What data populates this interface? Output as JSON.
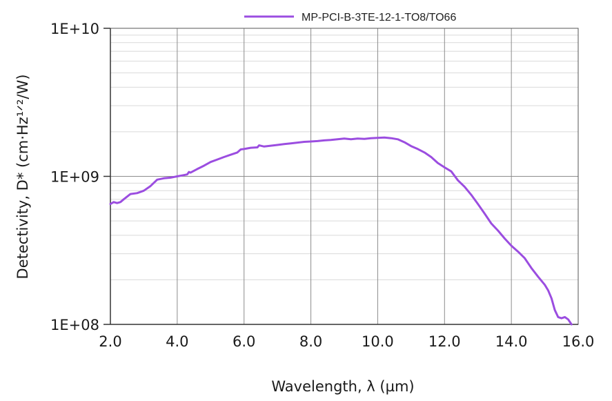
{
  "chart_data": {
    "type": "line",
    "xlabel": "Wavelength, λ (µm)",
    "ylabel": "Detectivity, D* (cm·Hz¹ᐟ²/W)",
    "xlim": [
      2.0,
      16.0
    ],
    "ylim": [
      100000000,
      10000000000
    ],
    "y_scale": "log",
    "grid": true,
    "legend_position": "top-right",
    "x_ticks": [
      2.0,
      4.0,
      6.0,
      8.0,
      10.0,
      12.0,
      14.0,
      16.0
    ],
    "x_tick_labels": [
      "2.0",
      "4.0",
      "6.0",
      "8.0",
      "10.0",
      "12.0",
      "14.0",
      "16.0"
    ],
    "y_ticks": [
      100000000,
      1000000000,
      10000000000
    ],
    "y_tick_labels": [
      "1E+08",
      "1E+09",
      "1E+10"
    ],
    "series": [
      {
        "name": "MP-PCI-B-3TE-12-1-TO8/TO66",
        "color": "#9b4de0",
        "x": [
          2.0,
          2.1,
          2.2,
          2.3,
          2.4,
          2.6,
          2.8,
          3.0,
          3.2,
          3.4,
          3.6,
          3.8,
          4.0,
          4.2,
          4.3,
          4.35,
          4.4,
          4.6,
          4.8,
          5.0,
          5.2,
          5.4,
          5.6,
          5.8,
          5.9,
          6.0,
          6.2,
          6.4,
          6.45,
          6.6,
          6.8,
          7.0,
          7.2,
          7.4,
          7.6,
          7.8,
          8.0,
          8.2,
          8.4,
          8.6,
          8.8,
          9.0,
          9.2,
          9.4,
          9.6,
          9.8,
          10.0,
          10.2,
          10.4,
          10.6,
          10.8,
          11.0,
          11.2,
          11.4,
          11.6,
          11.8,
          12.0,
          12.2,
          12.4,
          12.6,
          12.8,
          13.0,
          13.2,
          13.4,
          13.6,
          13.8,
          14.0,
          14.2,
          14.4,
          14.6,
          14.8,
          15.0,
          15.1,
          15.2,
          15.3,
          15.4,
          15.5,
          15.6,
          15.7,
          15.8
        ],
        "y": [
          650000000,
          670000000,
          660000000,
          670000000,
          700000000,
          760000000,
          770000000,
          800000000,
          860000000,
          950000000,
          970000000,
          980000000,
          1000000000,
          1020000000,
          1030000000,
          1070000000,
          1060000000,
          1120000000,
          1180000000,
          1250000000,
          1300000000,
          1350000000,
          1400000000,
          1450000000,
          1520000000,
          1530000000,
          1560000000,
          1570000000,
          1620000000,
          1590000000,
          1610000000,
          1630000000,
          1650000000,
          1670000000,
          1690000000,
          1710000000,
          1720000000,
          1730000000,
          1750000000,
          1760000000,
          1780000000,
          1800000000,
          1780000000,
          1800000000,
          1790000000,
          1810000000,
          1820000000,
          1830000000,
          1810000000,
          1780000000,
          1700000000,
          1600000000,
          1530000000,
          1450000000,
          1350000000,
          1230000000,
          1150000000,
          1080000000,
          940000000,
          850000000,
          750000000,
          650000000,
          560000000,
          480000000,
          430000000,
          380000000,
          340000000,
          310000000,
          280000000,
          240000000,
          210000000,
          185000000,
          170000000,
          150000000,
          125000000,
          112000000,
          110000000,
          112000000,
          108000000,
          100000000
        ]
      }
    ]
  }
}
